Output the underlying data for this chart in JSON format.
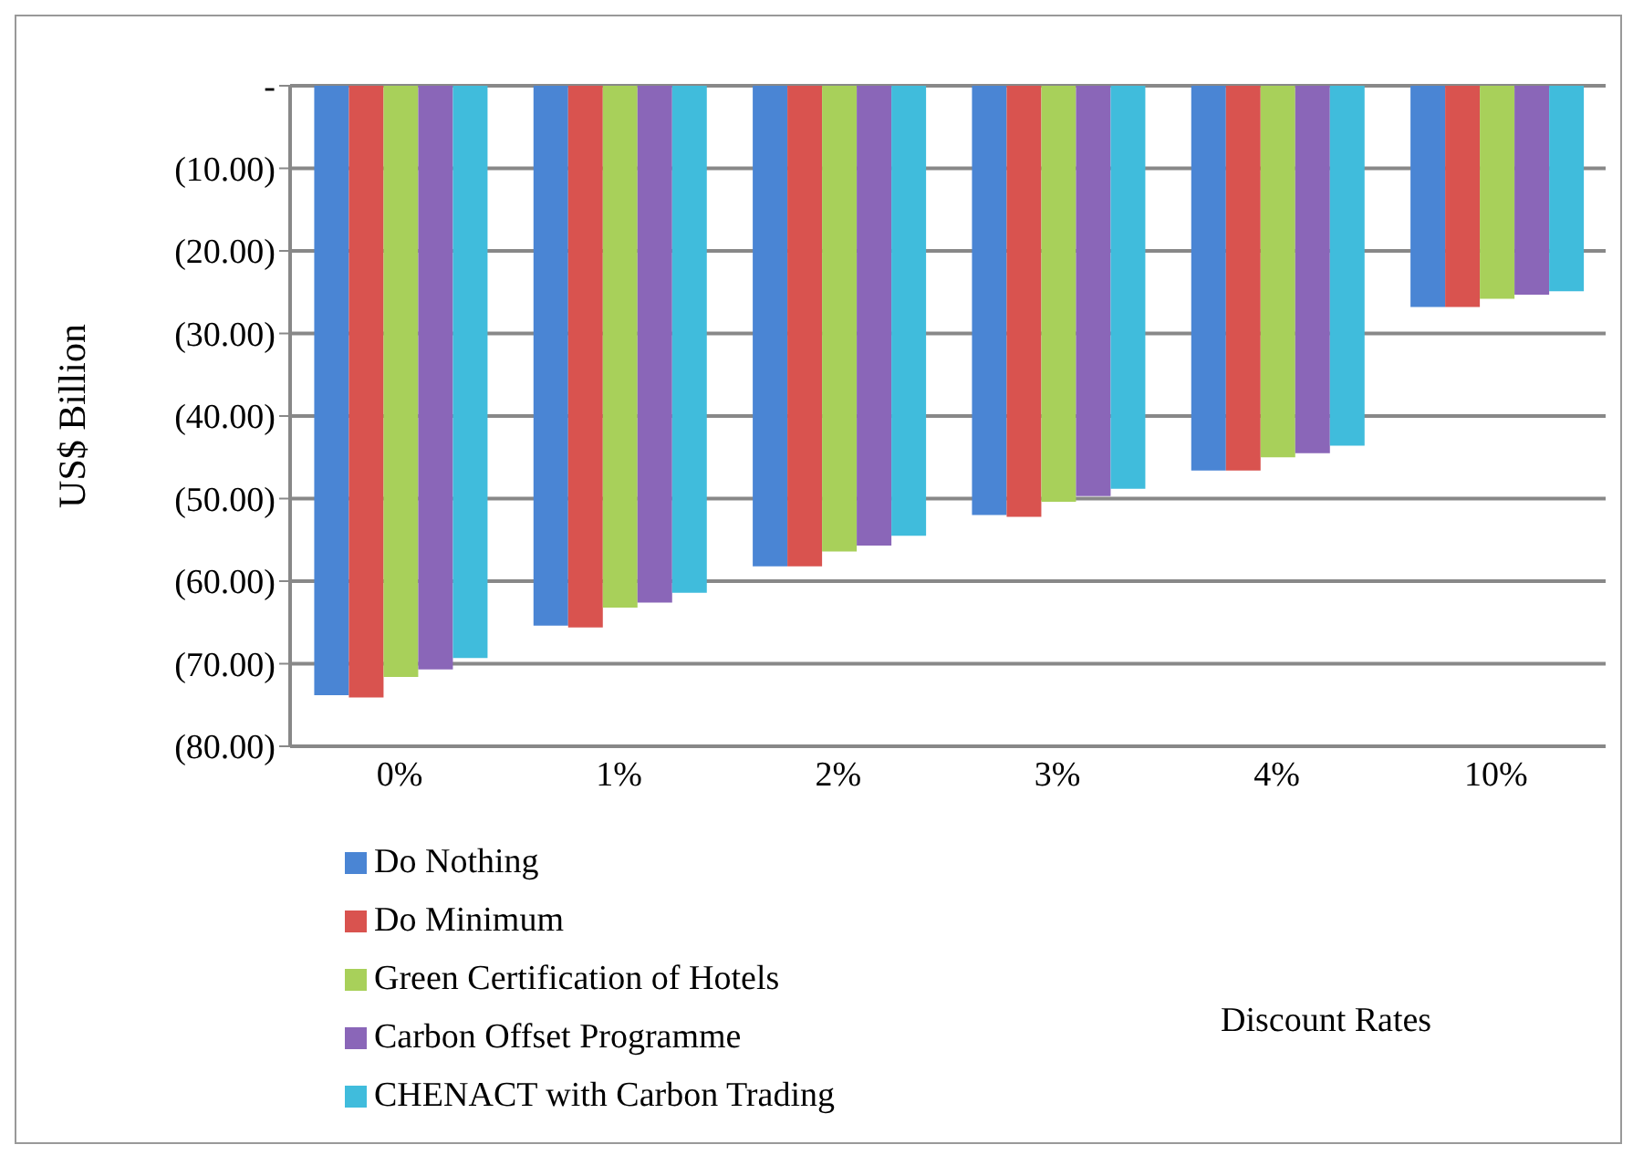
{
  "chart_data": {
    "type": "bar",
    "annotations": [
      "Discount Rates"
    ],
    "ylabel": "US$ Billion",
    "categories": [
      "0%",
      "1%",
      "2%",
      "3%",
      "4%",
      "10%"
    ],
    "series": [
      {
        "name": "Do Nothing",
        "color": "#4a85d4",
        "values": [
          -73.8,
          -65.4,
          -58.2,
          -52.0,
          -46.6,
          -26.8
        ]
      },
      {
        "name": "Do Minimum",
        "color": "#d9534f",
        "values": [
          -74.1,
          -65.6,
          -58.2,
          -52.2,
          -46.6,
          -26.8
        ]
      },
      {
        "name": "Green Certification of Hotels",
        "color": "#a8d05a",
        "values": [
          -71.6,
          -63.2,
          -56.4,
          -50.4,
          -45.0,
          -25.8
        ]
      },
      {
        "name": "Carbon Offset Programme",
        "color": "#8a66b8",
        "values": [
          -70.7,
          -62.6,
          -55.7,
          -49.7,
          -44.5,
          -25.3
        ]
      },
      {
        "name": "CHENACT with Carbon Trading",
        "color": "#40bcdc",
        "values": [
          -69.3,
          -61.4,
          -54.5,
          -48.8,
          -43.6,
          -24.9
        ]
      }
    ],
    "ylim": [
      -80,
      0
    ],
    "yticks": [
      {
        "value": 0,
        "label": "-"
      },
      {
        "value": -10,
        "label": "(10.00)"
      },
      {
        "value": -20,
        "label": "(20.00)"
      },
      {
        "value": -30,
        "label": "(30.00)"
      },
      {
        "value": -40,
        "label": "(40.00)"
      },
      {
        "value": -50,
        "label": "(50.00)"
      },
      {
        "value": -60,
        "label": "(60.00)"
      },
      {
        "value": -70,
        "label": "(70.00)"
      },
      {
        "value": -80,
        "label": "(80.00)"
      }
    ],
    "grid": "y",
    "legend": "bottom left"
  }
}
